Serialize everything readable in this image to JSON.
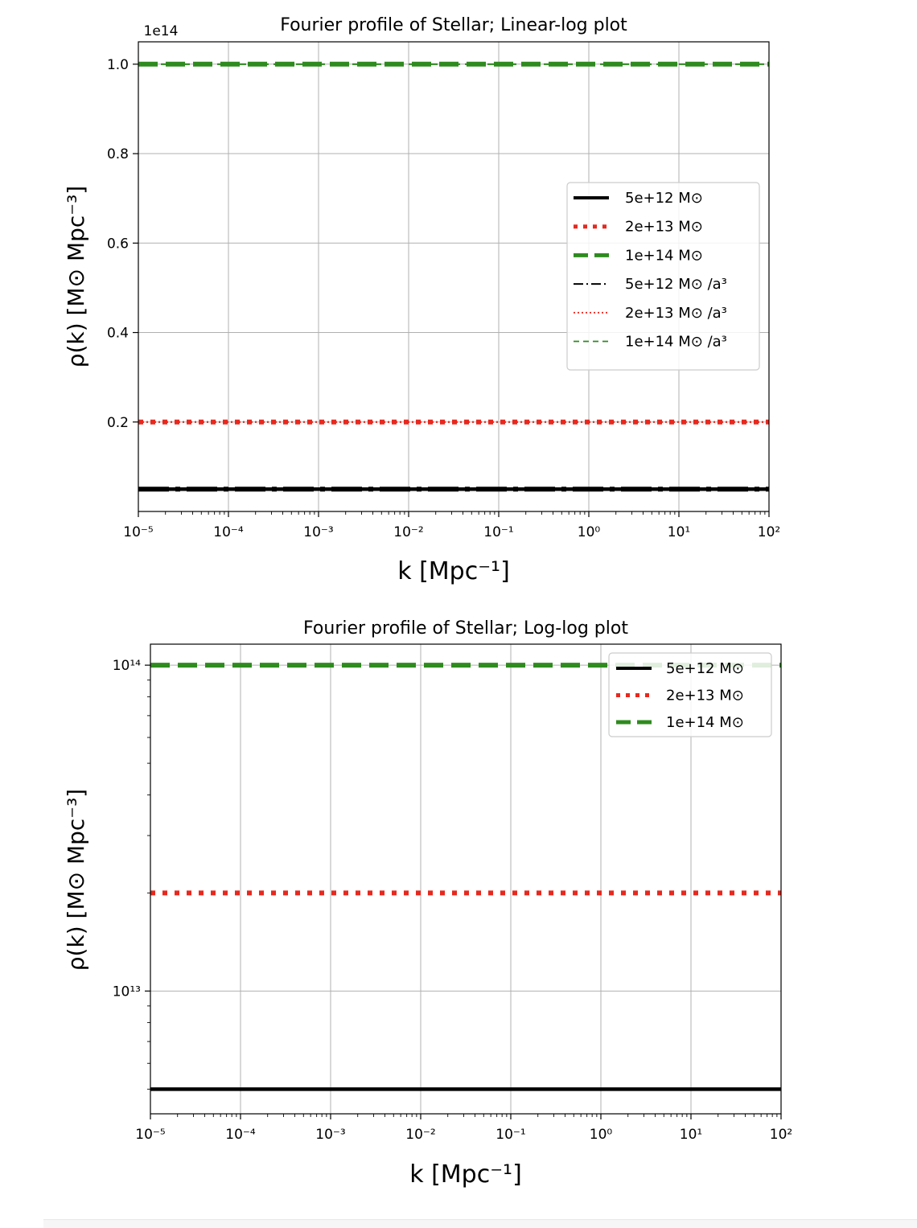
{
  "chart_data": [
    {
      "type": "line",
      "title": "Fourier profile of Stellar; Linear-log plot",
      "xlabel": "k [Mpc⁻¹]",
      "ylabel": "ρ(k) [M⊙ Mpc⁻³]",
      "xscale": "log",
      "yscale": "linear",
      "y_offset_label": "1e14",
      "xlim": [
        1e-05,
        100
      ],
      "ylim": [
        0,
        1.05
      ],
      "xticks": [
        "10⁻⁵",
        "10⁻⁴",
        "10⁻³",
        "10⁻²",
        "10⁻¹",
        "10⁰",
        "10¹",
        "10²"
      ],
      "yticks": [
        "0.2",
        "0.4",
        "0.6",
        "0.8",
        "1.0"
      ],
      "grid": true,
      "legend_position": "center-right",
      "x": [
        1e-05,
        100
      ],
      "series": [
        {
          "name": "5e+12 M⊙",
          "values": [
            0.05,
            0.05
          ],
          "color": "#000000",
          "style": "solid"
        },
        {
          "name": "2e+13 M⊙",
          "values": [
            0.2,
            0.2
          ],
          "color": "#e8281e",
          "style": "dotted"
        },
        {
          "name": "1e+14 M⊙",
          "values": [
            1.0,
            1.0
          ],
          "color": "#2e8b1e",
          "style": "dashed"
        },
        {
          "name": "5e+12 M⊙ /a³",
          "values": [
            0.05,
            0.05
          ],
          "color": "#000000",
          "style": "dashdot"
        },
        {
          "name": "2e+13 M⊙ /a³",
          "values": [
            0.2,
            0.2
          ],
          "color": "#e8281e",
          "style": "dotted-thin"
        },
        {
          "name": "1e+14 M⊙ /a³",
          "values": [
            1.0,
            1.0
          ],
          "color": "#2e8b1e",
          "style": "dashed-thin"
        }
      ]
    },
    {
      "type": "line",
      "title": "Fourier profile of Stellar; Log-log plot",
      "xlabel": "k [Mpc⁻¹]",
      "ylabel": "ρ(k) [M⊙ Mpc⁻³]",
      "xscale": "log",
      "yscale": "log",
      "xlim": [
        1e-05,
        100
      ],
      "ylim": [
        4200000000000.0,
        116000000000000.0
      ],
      "xticks": [
        "10⁻⁵",
        "10⁻⁴",
        "10⁻³",
        "10⁻²",
        "10⁻¹",
        "10⁰",
        "10¹",
        "10²"
      ],
      "yticks": [
        "10¹³",
        "10¹⁴"
      ],
      "grid": true,
      "legend_position": "top-right",
      "x": [
        1e-05,
        100
      ],
      "series": [
        {
          "name": "5e+12 M⊙",
          "values": [
            5000000000000.0,
            5000000000000.0
          ],
          "color": "#000000",
          "style": "solid"
        },
        {
          "name": "2e+13 M⊙",
          "values": [
            20000000000000.0,
            20000000000000.0
          ],
          "color": "#e8281e",
          "style": "dotted"
        },
        {
          "name": "1e+14 M⊙",
          "values": [
            100000000000000.0,
            100000000000000.0
          ],
          "color": "#2e8b1e",
          "style": "dashed"
        }
      ]
    }
  ]
}
